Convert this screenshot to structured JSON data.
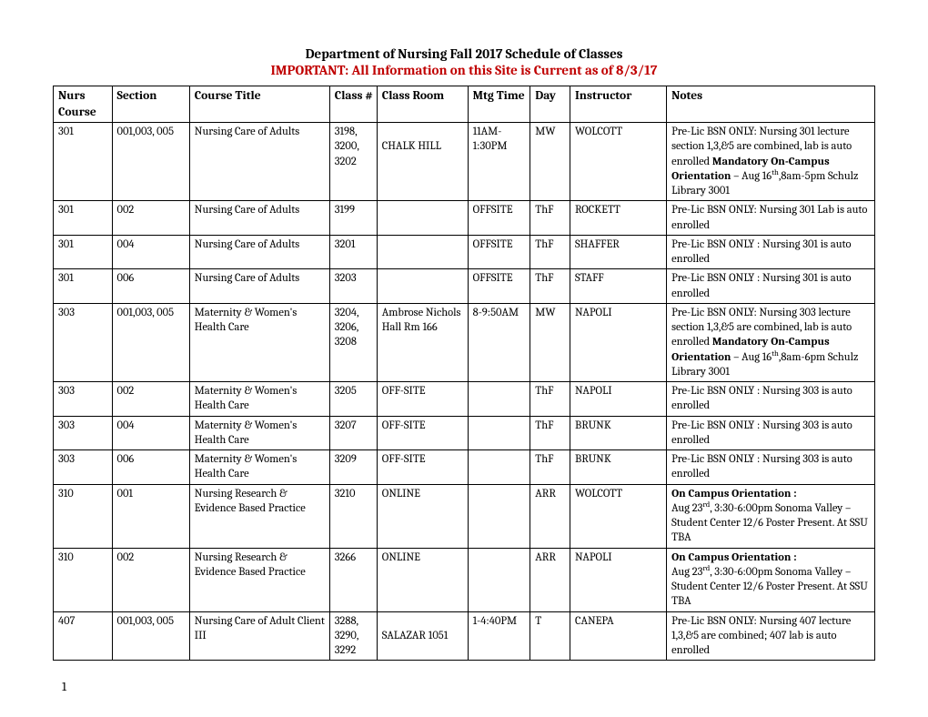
{
  "header": {
    "title_line1": "Department of Nursing Fall 2017 Schedule of Classes",
    "title_line2": "IMPORTANT: All Information on this Site is Current as of 8/3/17"
  },
  "table": {
    "columns": [
      "Nurs Course",
      "Section",
      "Course Title",
      "Class #",
      "Class Room",
      "Mtg Time",
      "Day",
      "Instructor",
      "Notes"
    ],
    "rows": [
      {
        "nurs": "301",
        "section": "001,003, 005",
        "title": "Nursing Care of Adults",
        "classnum": "3198, 3200, 3202",
        "room": "\nCHALK HILL",
        "time": "11AM-1:30PM",
        "day": "MW",
        "instructor": "WOLCOTT",
        "notes_plain": "Pre-Lic BSN ONLY: Nursing 301 lecture section 1,3,&5 are combined, lab is auto enrolled ",
        "notes_bold": "Mandatory On-Campus Orientation",
        "notes_tail": " – Aug 16th,8am-5pm Schulz Library 3001"
      },
      {
        "nurs": "301",
        "section": "002",
        "title": "Nursing Care of Adults",
        "classnum": "3199",
        "room": "",
        "time": "OFFSITE",
        "day": "ThF",
        "instructor": "ROCKETT",
        "notes_plain": "Pre-Lic BSN ONLY: Nursing 301 Lab is auto enrolled",
        "notes_bold": "",
        "notes_tail": ""
      },
      {
        "nurs": "301",
        "section": "004",
        "title": "Nursing Care of Adults",
        "classnum": "3201",
        "room": "",
        "time": "OFFSITE",
        "day": "ThF",
        "instructor": "SHAFFER",
        "notes_plain": "Pre-Lic BSN ONLY : Nursing 301 is auto enrolled",
        "notes_bold": "",
        "notes_tail": ""
      },
      {
        "nurs": "301",
        "section": "006",
        "title": "Nursing Care of Adults",
        "classnum": "3203",
        "room": "",
        "time": "OFFSITE",
        "day": "ThF",
        "instructor": "STAFF",
        "notes_plain": "Pre-Lic BSN ONLY : Nursing 301 is auto enrolled",
        "notes_bold": "",
        "notes_tail": ""
      },
      {
        "nurs": "303",
        "section": "001,003, 005",
        "title": "Maternity & Women's Health Care",
        "classnum": "3204, 3206, 3208",
        "room": "Ambrose Nichols Hall Rm 166",
        "time": "8-9:50AM",
        "day": "MW",
        "instructor": "NAPOLI",
        "notes_plain": "Pre-Lic BSN ONLY: Nursing 303 lecture section 1,3,&5 are combined, lab is auto enrolled ",
        "notes_bold": "Mandatory On-Campus Orientation",
        "notes_tail": " – Aug 16th,8am-6pm Schulz Library 3001"
      },
      {
        "nurs": "303",
        "section": "002",
        "title": "Maternity & Women's Health Care",
        "classnum": "3205",
        "room": "OFF-SITE",
        "time": "",
        "day": "ThF",
        "instructor": "NAPOLI",
        "notes_plain": "Pre-Lic BSN ONLY : Nursing 303 is auto enrolled",
        "notes_bold": "",
        "notes_tail": ""
      },
      {
        "nurs": "303",
        "section": "004",
        "title": "Maternity & Women's Health Care",
        "classnum": "3207",
        "room": "OFF-SITE",
        "time": "",
        "day": "ThF",
        "instructor": "BRUNK",
        "notes_plain": "Pre-Lic BSN ONLY : Nursing 303 is auto enrolled",
        "notes_bold": "",
        "notes_tail": ""
      },
      {
        "nurs": "303",
        "section": "006",
        "title": "Maternity & Women's Health Care",
        "classnum": "3209",
        "room": "OFF-SITE",
        "time": "",
        "day": "ThF",
        "instructor": "BRUNK",
        "notes_plain": "Pre-Lic BSN ONLY : Nursing 303 is auto enrolled",
        "notes_bold": "",
        "notes_tail": ""
      },
      {
        "nurs": "310",
        "section": "001",
        "title": "Nursing Research & Evidence Based Practice",
        "classnum": "3210",
        "room": "ONLINE",
        "time": "",
        "day": "ARR",
        "instructor": "WOLCOTT",
        "notes_plain": "",
        "notes_bold": "On Campus Orientation :",
        "notes_tail": "\nAug 23rd, 3:30-6:00pm Sonoma Valley – Student Center 12/6 Poster Present. At SSU TBA"
      },
      {
        "nurs": "310",
        "section": "002",
        "title": "Nursing Research & Evidence Based Practice",
        "classnum": "3266",
        "room": "ONLINE",
        "time": "",
        "day": "ARR",
        "instructor": "NAPOLI",
        "notes_plain": "",
        "notes_bold": "On Campus Orientation :",
        "notes_tail": "\nAug 23rd, 3:30-6:00pm Sonoma Valley – Student Center 12/6 Poster Present. At SSU TBA"
      },
      {
        "nurs": "407",
        "section": "001,003, 005",
        "title": "Nursing Care of Adult Client III",
        "classnum": "3288, 3290, 3292",
        "room": "\nSALAZAR 1051",
        "time": "1-4:40PM",
        "day": "T",
        "instructor": "CANEPA",
        "notes_plain": "Pre-Lic BSN ONLY: Nursing 407 lecture 1,3,&5 are combined; 407 lab is auto enrolled",
        "notes_bold": "",
        "notes_tail": ""
      }
    ]
  },
  "page_number": "1",
  "style": {
    "body_background": "#ffffff",
    "important_color": "#c00000",
    "border_color": "#000000",
    "body_font_size": 13,
    "header_font_size": 15,
    "th_font_size": 13.5,
    "td_font_size": 12.5
  }
}
